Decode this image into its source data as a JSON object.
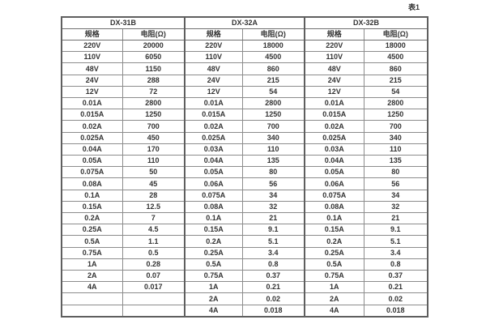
{
  "page": {
    "caption": "表1"
  },
  "table": {
    "groups": [
      {
        "name": "DX-31B",
        "spec_header": "规格",
        "res_header": "电阻(Ω)"
      },
      {
        "name": "DX-32A",
        "spec_header": "规格",
        "res_header": "电阻(Ω)"
      },
      {
        "name": "DX-32B",
        "spec_header": "规格",
        "res_header": "电阻(Ω)"
      }
    ],
    "rows": [
      {
        "c": [
          "220V",
          "20000",
          "220V",
          "18000",
          "220V",
          "18000"
        ]
      },
      {
        "c": [
          "110V",
          "6050",
          "110V",
          "4500",
          "110V",
          "4500"
        ]
      },
      {
        "c": [
          "48V",
          "1150",
          "48V",
          "860",
          "48V",
          "860"
        ]
      },
      {
        "c": [
          "24V",
          "288",
          "24V",
          "215",
          "24V",
          "215"
        ]
      },
      {
        "c": [
          "12V",
          "72",
          "12V",
          "54",
          "12V",
          "54"
        ]
      },
      {
        "c": [
          "0.01A",
          "2800",
          "0.01A",
          "2800",
          "0.01A",
          "2800"
        ]
      },
      {
        "c": [
          "0.015A",
          "1250",
          "0.015A",
          "1250",
          "0.015A",
          "1250"
        ]
      },
      {
        "c": [
          "0.02A",
          "700",
          "0.02A",
          "700",
          "0.02A",
          "700"
        ]
      },
      {
        "c": [
          "0.025A",
          "450",
          "0.025A",
          "340",
          "0.025A",
          "340"
        ]
      },
      {
        "c": [
          "0.04A",
          "170",
          "0.03A",
          "110",
          "0.03A",
          "110"
        ]
      },
      {
        "c": [
          "0.05A",
          "110",
          "0.04A",
          "135",
          "0.04A",
          "135"
        ]
      },
      {
        "c": [
          "0.075A",
          "50",
          "0.05A",
          "80",
          "0.05A",
          "80"
        ]
      },
      {
        "c": [
          "0.08A",
          "45",
          "0.06A",
          "56",
          "0.06A",
          "56"
        ]
      },
      {
        "c": [
          "0.1A",
          "28",
          "0.075A",
          "34",
          "0.075A",
          "34"
        ]
      },
      {
        "c": [
          "0.15A",
          "12.5",
          "0.08A",
          "32",
          "0.08A",
          "32"
        ]
      },
      {
        "c": [
          "0.2A",
          "7",
          "0.1A",
          "21",
          "0.1A",
          "21"
        ]
      },
      {
        "c": [
          "0.25A",
          "4.5",
          "0.15A",
          "9.1",
          "0.15A",
          "9.1"
        ]
      },
      {
        "c": [
          "0.5A",
          "1.1",
          "0.2A",
          "5.1",
          "0.2A",
          "5.1"
        ]
      },
      {
        "c": [
          "0.75A",
          "0.5",
          "0.25A",
          "3.4",
          "0.25A",
          "3.4"
        ]
      },
      {
        "c": [
          "1A",
          "0.28",
          "0.5A",
          "0.8",
          "0.5A",
          "0.8"
        ]
      },
      {
        "c": [
          "2A",
          "0.07",
          "0.75A",
          "0.37",
          "0.75A",
          "0.37"
        ]
      },
      {
        "c": [
          "4A",
          "0.017",
          "1A",
          "0.21",
          "1A",
          "0.21"
        ]
      },
      {
        "c": [
          "",
          "",
          "2A",
          "0.02",
          "2A",
          "0.02"
        ]
      },
      {
        "c": [
          "",
          "",
          "4A",
          "0.018",
          "4A",
          "0.018"
        ]
      }
    ]
  }
}
